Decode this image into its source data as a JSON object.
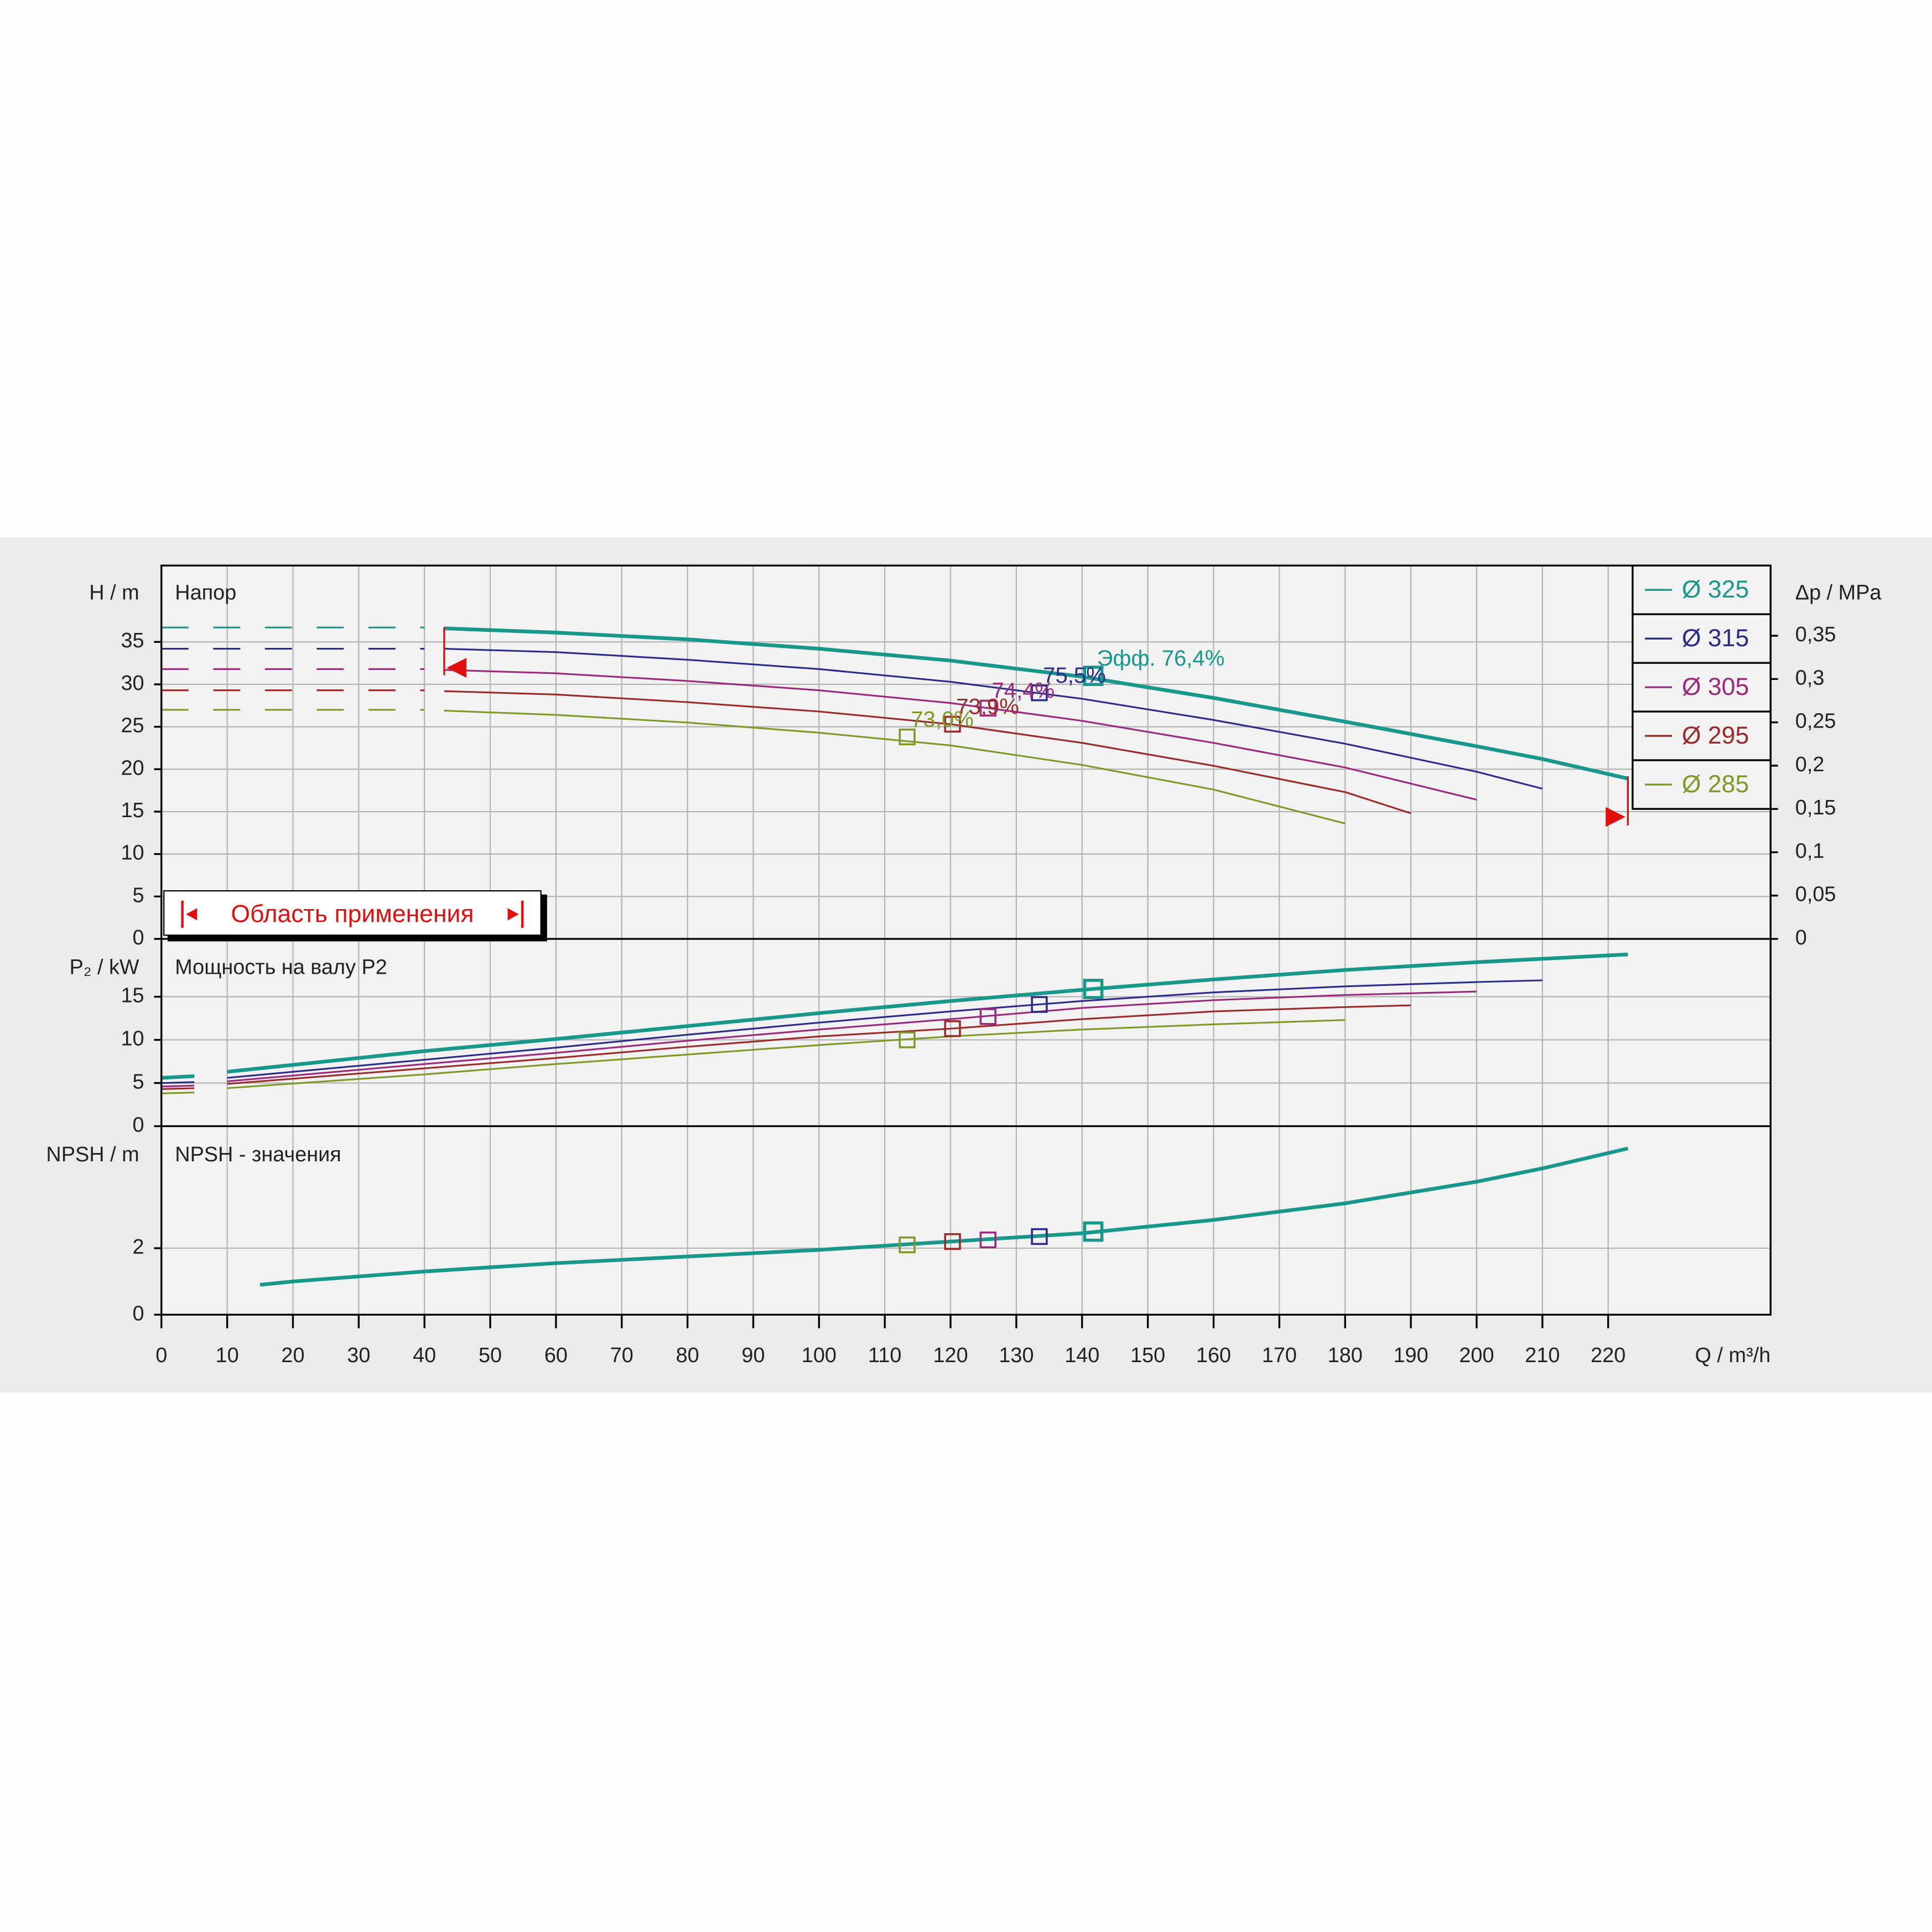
{
  "chart_data": [
    {
      "type": "line",
      "title": "Напор",
      "y_label": "H / m",
      "y2_label": "Δp / MPa",
      "ylim": [
        0,
        44
      ],
      "yticks": [
        0,
        5,
        10,
        15,
        20,
        25,
        30,
        35
      ],
      "y2lim": [
        0,
        0.431
      ],
      "y2ticks": [
        0,
        {
          "value": 0.05,
          "label": "0,05"
        },
        {
          "value": 0.1,
          "label": "0,1"
        },
        {
          "value": 0.15,
          "label": "0,15"
        },
        {
          "value": 0.2,
          "label": "0,2"
        },
        {
          "value": 0.25,
          "label": "0,25"
        },
        {
          "value": 0.3,
          "label": "0,3"
        },
        {
          "value": 0.35,
          "label": "0,35"
        }
      ],
      "grid": true,
      "legend": "top right",
      "application_range": [
        43,
        223
      ],
      "application_label": "Область применения",
      "series": [
        {
          "name": "Ø 325",
          "color": "#17988a",
          "x": [
            0,
            40,
            43,
            60,
            80,
            100,
            120,
            140,
            160,
            180,
            200,
            210,
            223
          ],
          "values": [
            36.7,
            36.7,
            36.6,
            36.1,
            35.3,
            34.2,
            32.8,
            30.9,
            28.4,
            25.6,
            22.7,
            21.2,
            18.9
          ],
          "bep_x": 141.7,
          "bep_value": 31.0,
          "bep_label": "Эфф.  76,4%"
        },
        {
          "name": "Ø 315",
          "color": "#2b2b8c",
          "x": [
            0,
            40,
            43,
            60,
            80,
            100,
            120,
            140,
            160,
            180,
            200,
            210
          ],
          "values": [
            34.2,
            34.2,
            34.2,
            33.8,
            32.9,
            31.8,
            30.3,
            28.3,
            25.8,
            23.0,
            19.7,
            17.7
          ],
          "bep_x": 133.5,
          "bep_value": 29.0,
          "bep_label": "75,5%"
        },
        {
          "name": "Ø 305",
          "color": "#9c2a7c",
          "x": [
            0,
            40,
            43,
            60,
            80,
            100,
            120,
            140,
            160,
            180,
            200
          ],
          "values": [
            31.8,
            31.8,
            31.7,
            31.3,
            30.4,
            29.3,
            27.8,
            25.7,
            23.1,
            20.2,
            16.4
          ],
          "bep_x": 125.7,
          "bep_value": 27.2,
          "bep_label": "74,4%"
        },
        {
          "name": "Ø 295",
          "color": "#9c2a2a",
          "x": [
            0,
            40,
            43,
            60,
            80,
            100,
            120,
            140,
            160,
            180,
            190
          ],
          "values": [
            29.3,
            29.3,
            29.2,
            28.8,
            27.9,
            26.8,
            25.3,
            23.1,
            20.4,
            17.3,
            14.8
          ],
          "bep_x": 120.3,
          "bep_value": 25.3,
          "bep_label": "73,9%"
        },
        {
          "name": "Ø 285",
          "color": "#7e9a26",
          "x": [
            0,
            40,
            43,
            60,
            80,
            100,
            120,
            140,
            160,
            180
          ],
          "values": [
            27.0,
            27.0,
            26.9,
            26.4,
            25.5,
            24.3,
            22.8,
            20.5,
            17.6,
            13.6
          ],
          "bep_x": 113.4,
          "bep_value": 23.8,
          "bep_label": "73,0%"
        }
      ]
    },
    {
      "type": "line",
      "title": "Мощность  на валу P2",
      "y_label": "P₂ / kW",
      "ylim": [
        0,
        21.7
      ],
      "yticks": [
        0,
        5,
        10,
        15
      ],
      "grid": true,
      "series": [
        {
          "color": "#17988a",
          "x": [
            0,
            5,
            7.5,
            10,
            40,
            60,
            80,
            100,
            120,
            140,
            160,
            180,
            200,
            223
          ],
          "values": [
            5.6,
            5.8,
            null,
            6.3,
            8.7,
            10.1,
            11.6,
            13.1,
            14.5,
            15.8,
            17.0,
            18.1,
            19.0,
            19.9
          ],
          "bep_x": 141.7,
          "bep_value": 15.9
        },
        {
          "color": "#2b2b8c",
          "x": [
            0,
            5,
            7.5,
            10,
            40,
            60,
            80,
            100,
            120,
            140,
            160,
            180,
            200,
            210
          ],
          "values": [
            5.0,
            5.1,
            null,
            5.6,
            7.7,
            9.1,
            10.6,
            12.0,
            13.3,
            14.5,
            15.5,
            16.2,
            16.7,
            16.9
          ],
          "bep_x": 133.5,
          "bep_value": 14.1
        },
        {
          "color": "#9c2a7c",
          "x": [
            0,
            5,
            7.5,
            10,
            40,
            60,
            80,
            100,
            120,
            140,
            160,
            180,
            200
          ],
          "values": [
            4.6,
            4.7,
            null,
            5.2,
            7.2,
            8.5,
            9.9,
            11.2,
            12.4,
            13.7,
            14.6,
            15.2,
            15.6
          ],
          "bep_x": 125.7,
          "bep_value": 12.7
        },
        {
          "color": "#9c2a2a",
          "x": [
            0,
            5,
            7.5,
            10,
            40,
            60,
            80,
            100,
            120,
            140,
            160,
            180,
            190
          ],
          "values": [
            4.3,
            4.4,
            null,
            4.9,
            6.7,
            7.9,
            9.2,
            10.4,
            11.3,
            12.4,
            13.3,
            13.8,
            14.0
          ],
          "bep_x": 120.3,
          "bep_value": 11.3
        },
        {
          "color": "#7e9a26",
          "x": [
            0,
            5,
            7.5,
            10,
            40,
            60,
            80,
            100,
            120,
            140,
            160,
            180
          ],
          "values": [
            3.8,
            3.9,
            null,
            4.4,
            6.0,
            7.2,
            8.3,
            9.4,
            10.4,
            11.2,
            11.8,
            12.3
          ],
          "bep_x": 113.4,
          "bep_value": 10.0
        }
      ]
    },
    {
      "type": "line",
      "title": "NPSH - значения",
      "y_label": "NPSH / m",
      "x_label": "Q / m³/h",
      "ylim": [
        0,
        5.67
      ],
      "yticks": [
        0,
        2
      ],
      "grid": true,
      "xlim": [
        0,
        244.7
      ],
      "xticks": [
        0,
        10,
        20,
        30,
        40,
        50,
        60,
        70,
        80,
        90,
        100,
        110,
        120,
        130,
        140,
        150,
        160,
        170,
        180,
        190,
        200,
        210,
        220
      ],
      "series": [
        {
          "color": "#17988a",
          "x": [
            15,
            20,
            40,
            60,
            80,
            100,
            120,
            140,
            160,
            180,
            200,
            210,
            223
          ],
          "values": [
            0.9,
            1.0,
            1.3,
            1.55,
            1.75,
            1.95,
            2.2,
            2.45,
            2.85,
            3.35,
            4.0,
            4.4,
            5.0
          ]
        }
      ],
      "bep_points": {
        "x": [
          141.7,
          133.5,
          125.7,
          120.3,
          113.4
        ],
        "values": [
          2.5,
          2.35,
          2.25,
          2.2,
          2.1
        ],
        "colors": [
          "#17988a",
          "#2b2b8c",
          "#9c2a7c",
          "#9c2a2a",
          "#7e9a26"
        ]
      }
    }
  ]
}
